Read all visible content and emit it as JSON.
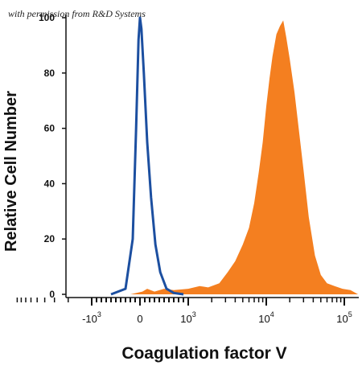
{
  "watermark": "with permission from R&D Systems",
  "chart_data": {
    "type": "area",
    "title": "",
    "xlabel": "Coagulation factor V",
    "ylabel": "Relative Cell Number",
    "x_scale": "biexponential",
    "xlim": [
      -3000,
      150000
    ],
    "ylim": [
      0,
      100
    ],
    "x_tick_labels": [
      {
        "value": -1000,
        "base": "-10",
        "exp": "3"
      },
      {
        "value": 0,
        "base": "0",
        "exp": ""
      },
      {
        "value": 1000,
        "base": "10",
        "exp": "3"
      },
      {
        "value": 10000,
        "base": "10",
        "exp": "4"
      },
      {
        "value": 100000,
        "base": "10",
        "exp": "5"
      }
    ],
    "y_ticks": [
      0,
      20,
      40,
      60,
      80,
      100
    ],
    "grid": false,
    "legend": "none",
    "series": [
      {
        "style": "filled",
        "color": "#f47f20",
        "points": [
          [
            -200,
            0
          ],
          [
            50,
            1
          ],
          [
            150,
            2
          ],
          [
            300,
            1
          ],
          [
            500,
            2
          ],
          [
            700,
            1.5
          ],
          [
            1000,
            2
          ],
          [
            1400,
            3
          ],
          [
            1800,
            2.5
          ],
          [
            2500,
            4
          ],
          [
            3200,
            8
          ],
          [
            4000,
            12
          ],
          [
            5000,
            18
          ],
          [
            6000,
            24
          ],
          [
            7000,
            33
          ],
          [
            8000,
            44
          ],
          [
            9000,
            55
          ],
          [
            10000,
            68
          ],
          [
            11000,
            78
          ],
          [
            12000,
            86
          ],
          [
            13500,
            94
          ],
          [
            15000,
            97
          ],
          [
            16500,
            99
          ],
          [
            18000,
            93
          ],
          [
            20000,
            85
          ],
          [
            23000,
            73
          ],
          [
            26000,
            60
          ],
          [
            30000,
            45
          ],
          [
            35000,
            28
          ],
          [
            42000,
            14
          ],
          [
            50000,
            7
          ],
          [
            60000,
            4
          ],
          [
            75000,
            3
          ],
          [
            95000,
            2
          ],
          [
            120000,
            1.5
          ],
          [
            150000,
            0
          ]
        ]
      },
      {
        "style": "line",
        "color": "#1c4fa0",
        "points": [
          [
            -600,
            0
          ],
          [
            -300,
            2
          ],
          [
            -150,
            20
          ],
          [
            -80,
            60
          ],
          [
            -30,
            92
          ],
          [
            0,
            100
          ],
          [
            30,
            96
          ],
          [
            80,
            80
          ],
          [
            150,
            55
          ],
          [
            230,
            35
          ],
          [
            320,
            18
          ],
          [
            420,
            8
          ],
          [
            550,
            2
          ],
          [
            700,
            0.5
          ],
          [
            900,
            0
          ]
        ]
      }
    ]
  }
}
